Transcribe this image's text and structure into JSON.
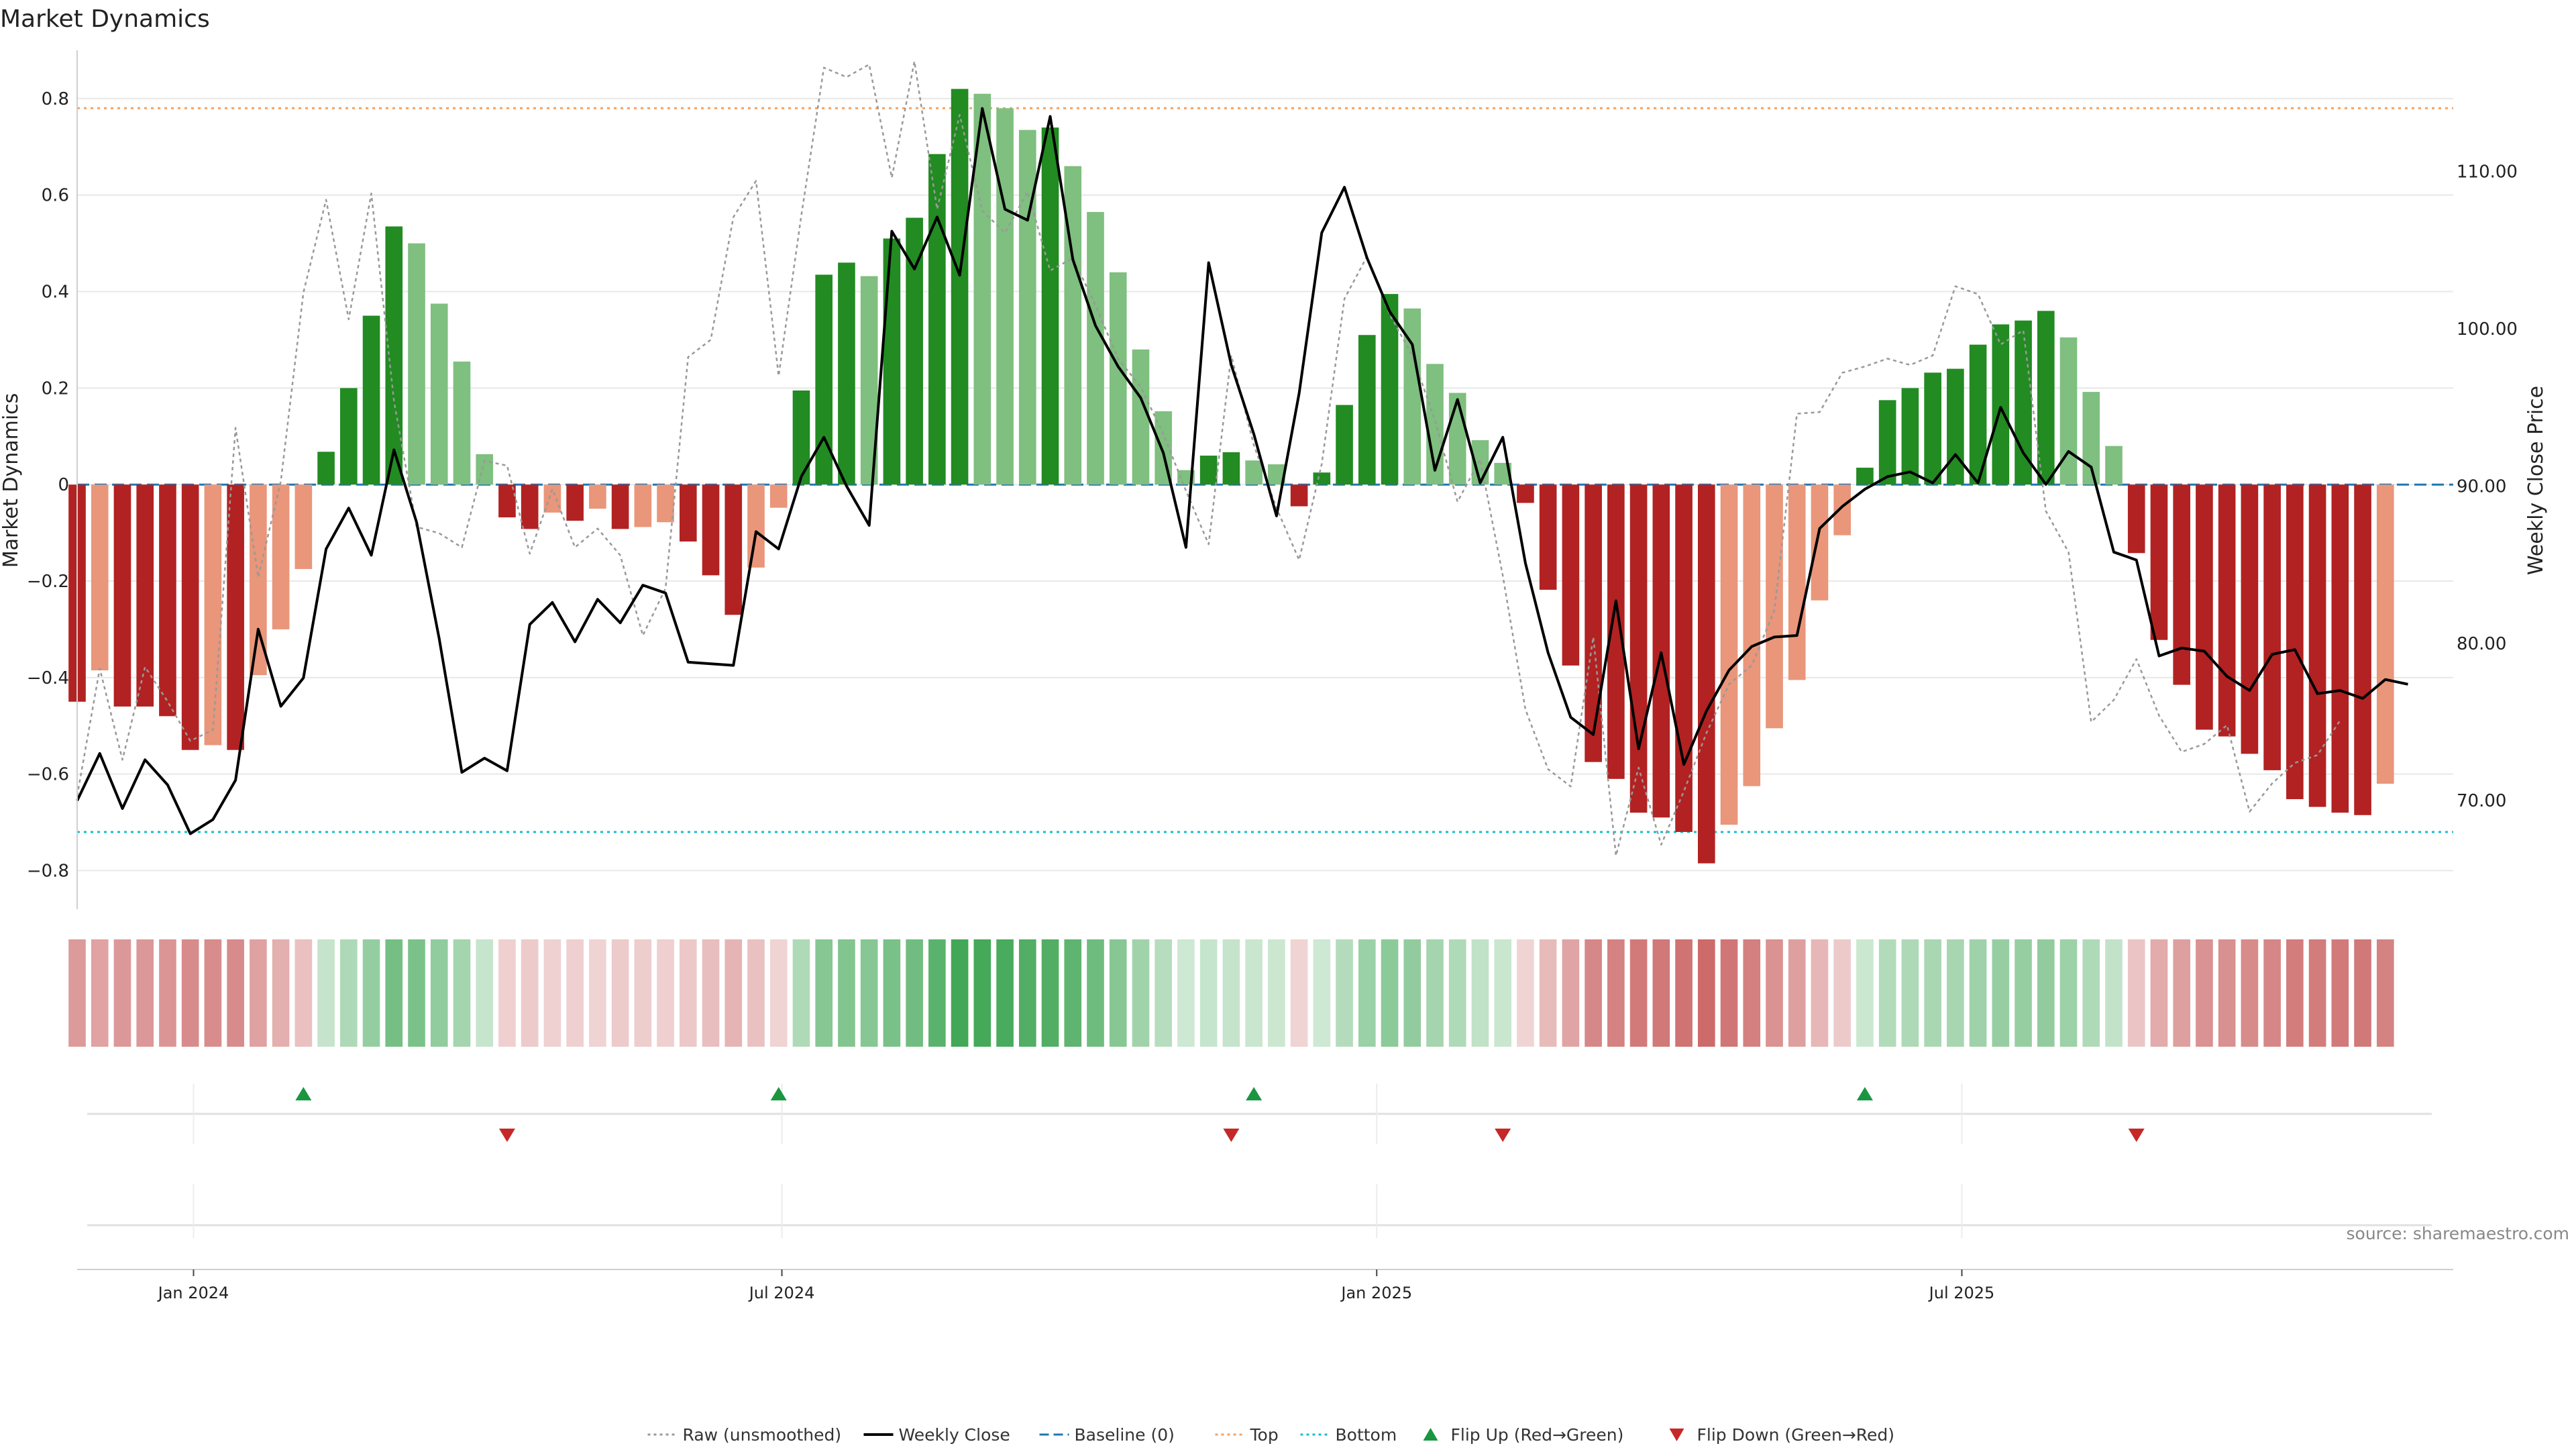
{
  "chart_data": {
    "type": "bar",
    "title": "Market Dynamics",
    "ylabel": "Market Dynamics",
    "y2label": "Weekly Close Price",
    "source": "source: sharemaestro.com",
    "ylim": [
      -0.88,
      0.9
    ],
    "y2lim": [
      63.1,
      117.7
    ],
    "yticks": [
      {
        "value": 0.8,
        "label": "0.8"
      },
      {
        "value": 0.6,
        "label": "0.6"
      },
      {
        "value": 0.4,
        "label": "0.4"
      },
      {
        "value": 0.2,
        "label": "0.2"
      },
      {
        "value": 0,
        "label": "0"
      },
      {
        "value": -0.2,
        "label": "−0.2"
      },
      {
        "value": -0.4,
        "label": "−0.4"
      },
      {
        "value": -0.6,
        "label": "−0.6"
      },
      {
        "value": -0.8,
        "label": "−0.8"
      }
    ],
    "y2ticks": [
      {
        "value": 110,
        "label": "110.00"
      },
      {
        "value": 100,
        "label": "100.00"
      },
      {
        "value": 90,
        "label": "90.00"
      },
      {
        "value": 80,
        "label": "80.00"
      },
      {
        "value": 70,
        "label": "70.00"
      }
    ],
    "xlim": [
      "2023-11-26",
      "2025-11-30"
    ],
    "xticks": [
      {
        "date": "2024-01-01",
        "label": "Jan 2024"
      },
      {
        "date": "2024-07-01",
        "label": "Jul 2024"
      },
      {
        "date": "2025-01-01",
        "label": "Jan 2025"
      },
      {
        "date": "2025-07-01",
        "label": "Jul 2025"
      }
    ],
    "start_date": "2023-11-26",
    "dynamics": [
      -0.45,
      -0.385,
      -0.46,
      -0.46,
      -0.48,
      -0.55,
      -0.54,
      -0.55,
      -0.395,
      -0.3,
      -0.175,
      0.068,
      0.2,
      0.35,
      0.535,
      0.5,
      0.375,
      0.255,
      0.063,
      -0.068,
      -0.092,
      -0.058,
      -0.075,
      -0.05,
      -0.092,
      -0.088,
      -0.078,
      -0.118,
      -0.188,
      -0.27,
      -0.172,
      -0.048,
      0.195,
      0.435,
      0.46,
      0.432,
      0.51,
      0.553,
      0.685,
      0.82,
      0.81,
      0.78,
      0.735,
      0.74,
      0.66,
      0.565,
      0.44,
      0.28,
      0.152,
      0.03,
      0.06,
      0.067,
      0.05,
      0.042,
      -0.045,
      0.025,
      0.165,
      0.31,
      0.395,
      0.365,
      0.25,
      0.19,
      0.092,
      0.045,
      -0.038,
      -0.218,
      -0.375,
      -0.575,
      -0.61,
      -0.68,
      -0.69,
      -0.72,
      -0.785,
      -0.705,
      -0.625,
      -0.505,
      -0.405,
      -0.24,
      -0.105,
      0.035,
      0.175,
      0.2,
      0.232,
      0.24,
      0.29,
      0.332,
      0.34,
      0.36,
      0.305,
      0.192,
      0.08,
      -0.142,
      -0.322,
      -0.415,
      -0.508,
      -0.522,
      -0.558,
      -0.592,
      -0.652,
      -0.668,
      -0.68,
      -0.685,
      -0.62
    ],
    "bar_colors": {
      "up": "#228b22",
      "up_fading": "#7fbf7f",
      "down": "#b22222",
      "down_fading": "#e9967a"
    },
    "strip_colors": {
      "green": "#2e9e45",
      "red": "#c55454"
    },
    "series": [
      {
        "name": "Raw (unsmoothed)",
        "style": "dotted",
        "color": "#999999",
        "axis": "secondary",
        "values": [
          70.3,
          78.4,
          72.6,
          78.5,
          76.3,
          73.8,
          74.5,
          93.7,
          84.2,
          90.3,
          102.3,
          108.2,
          100.6,
          108.6,
          95.4,
          87.4,
          87.0,
          86.1,
          91.6,
          91.3,
          85.7,
          89.8,
          86.1,
          87.3,
          85.6,
          80.5,
          83.5,
          98.2,
          99.3,
          107.1,
          109.4,
          97.0,
          107.2,
          116.6,
          116.0,
          116.8,
          109.6,
          117.0,
          107.6,
          113.6,
          107.5,
          106.1,
          108.7,
          103.7,
          104.5,
          101.5,
          98.1,
          96.3,
          93.3,
          89.7,
          86.3,
          98.3,
          92.6,
          88.6,
          85.3,
          91.4,
          101.9,
          104.6,
          100.9,
          98.3,
          94.2,
          89.0,
          91.7,
          84.3,
          75.8,
          72.0,
          70.9,
          80.4,
          66.5,
          72.1,
          67.2,
          70.6,
          74.3,
          77.4,
          78.6,
          82.1,
          94.6,
          94.7,
          97.2,
          97.6,
          98.1,
          97.7,
          98.3,
          102.7,
          102.2,
          99.0,
          99.9,
          88.4,
          85.8,
          75.0,
          76.4,
          79.0,
          75.4,
          73.1,
          73.6,
          74.8,
          69.3,
          71.1,
          72.4,
          72.9,
          75.1
        ]
      },
      {
        "name": "Weekly Close",
        "style": "solid",
        "color": "#000000",
        "axis": "secondary",
        "values": [
          70.0,
          73.0,
          69.5,
          72.6,
          71.0,
          67.9,
          68.8,
          71.3,
          80.9,
          76.0,
          77.8,
          86.0,
          88.6,
          85.6,
          92.3,
          87.7,
          80.3,
          71.8,
          72.7,
          71.9,
          81.2,
          82.6,
          80.1,
          82.8,
          81.3,
          83.7,
          83.2,
          78.8,
          78.7,
          78.6,
          87.1,
          86.0,
          90.6,
          93.1,
          90.0,
          87.5,
          106.2,
          103.8,
          107.1,
          103.4,
          114.0,
          107.6,
          106.9,
          113.5,
          104.4,
          100.2,
          97.6,
          95.6,
          92.1,
          86.1,
          104.2,
          97.7,
          93.3,
          88.1,
          95.9,
          106.1,
          109.0,
          104.5,
          101.1,
          99.0,
          91.0,
          95.5,
          90.2,
          93.1,
          85.1,
          79.4,
          75.3,
          74.2,
          82.7,
          73.3,
          79.4,
          72.3,
          75.7,
          78.3,
          79.8,
          80.4,
          80.5,
          87.3,
          88.7,
          89.8,
          90.6,
          90.9,
          90.2,
          92.0,
          90.2,
          95.0,
          92.1,
          90.1,
          92.2,
          91.2,
          85.8,
          85.3,
          79.2,
          79.7,
          79.5,
          77.9,
          77.0,
          79.3,
          79.6,
          76.8,
          77.0,
          76.5,
          77.7,
          77.4
        ]
      },
      {
        "name": "Baseline (0)",
        "style": "dashed",
        "color": "#1f77b4",
        "axis": "primary",
        "value": 0
      },
      {
        "name": "Top",
        "style": "dotted",
        "color": "#f4a261",
        "axis": "primary",
        "value": 0.78
      },
      {
        "name": "Bottom",
        "style": "dotted",
        "color": "#17becf",
        "axis": "primary",
        "value": -0.72
      }
    ],
    "flip_up": [
      "2024-02-04",
      "2024-06-30",
      "2024-11-24",
      "2025-06-01"
    ],
    "flip_down": [
      "2024-04-07",
      "2024-11-17",
      "2025-02-09",
      "2025-08-24"
    ],
    "legend": [
      {
        "label": "Raw (unsmoothed)",
        "kind": "line-dotted",
        "color": "#999999"
      },
      {
        "label": "Weekly Close",
        "kind": "line-solid",
        "color": "#000000"
      },
      {
        "label": "Baseline (0)",
        "kind": "line-dashed",
        "color": "#1f77b4"
      },
      {
        "label": "Top",
        "kind": "line-dotted",
        "color": "#f4a261"
      },
      {
        "label": "Bottom",
        "kind": "line-dotted",
        "color": "#17becf"
      },
      {
        "label": "Flip Up (Red→Green)",
        "kind": "triangle-up",
        "color": "#1a9641"
      },
      {
        "label": "Flip Down (Green→Red)",
        "kind": "triangle-down",
        "color": "#c62828"
      }
    ],
    "legend_position": "bottom-center"
  }
}
